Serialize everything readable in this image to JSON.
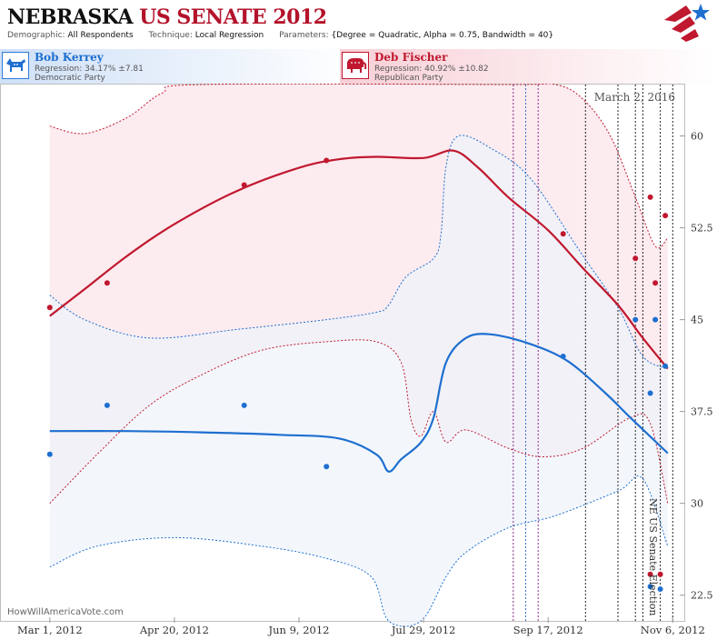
{
  "header": {
    "title_state": "NEBRASKA",
    "title_rest": "US SENATE 2012",
    "demographic_label": "Demographic:",
    "demographic_value": "All Respondents",
    "technique_label": "Technique:",
    "technique_value": "Local Regression",
    "parameters_label": "Parameters:",
    "parameters_value": "{Degree = Quadratic, Alpha = 0.75, Bandwidth = 40}"
  },
  "candidates": {
    "dem": {
      "name": "Bob Kerrey",
      "regression": "Regression: 34.17% ±7.81",
      "party": "Democratic Party",
      "icon": "donkey-icon",
      "color": "#1e6fd0"
    },
    "rep": {
      "name": "Deb Fischer",
      "regression": "Regression: 40.92% ±10.82",
      "party": "Republican Party",
      "icon": "elephant-icon",
      "color": "#c0182e"
    }
  },
  "watermark": "HowWillAmericaVote.com",
  "chart_data": {
    "type": "line",
    "date_annotation": "March 2, 2016",
    "election_label": "NE US Senate Election",
    "x_tick_labels": [
      "Mar 1, 2012",
      "Apr 20, 2012",
      "Jun 9, 2012",
      "Jul 29, 2012",
      "Sep 17, 2012",
      "Nov 6, 2012"
    ],
    "x_ticks": [
      "2012-03-01",
      "2012-04-20",
      "2012-06-09",
      "2012-07-29",
      "2012-09-17",
      "2012-11-06"
    ],
    "xlim": [
      "2012-02-10",
      "2012-11-11"
    ],
    "ylim": [
      20.4,
      64.2
    ],
    "y_ticks": [
      22.5,
      30,
      37.5,
      45,
      52.5,
      60
    ],
    "y_tick_labels": [
      "22.5",
      "30",
      "37.5",
      "45",
      "52.5",
      "60"
    ],
    "grid": false,
    "vertical_markers": [
      {
        "date": "2012-09-03",
        "color": "#8a2a8a"
      },
      {
        "date": "2012-09-08",
        "color": "#3a6fd0"
      },
      {
        "date": "2012-09-13",
        "color": "#8a2a8a"
      },
      {
        "date": "2012-10-02",
        "color": "#222222"
      },
      {
        "date": "2012-10-15",
        "color": "#222222"
      },
      {
        "date": "2012-10-22",
        "color": "#222222"
      },
      {
        "date": "2012-10-25",
        "color": "#222222"
      },
      {
        "date": "2012-11-01",
        "color": "#222222"
      },
      {
        "date": "2012-11-06",
        "color": "#222222"
      }
    ],
    "series": [
      {
        "name": "Deb Fischer",
        "color": "#c0182e",
        "band_fill": "#fbe8ec",
        "points": [
          [
            "2012-03-01",
            46.0
          ],
          [
            "2012-03-24",
            48.0
          ],
          [
            "2012-05-18",
            56.0
          ],
          [
            "2012-06-20",
            58.0
          ],
          [
            "2012-09-23",
            52.0
          ],
          [
            "2012-10-22",
            50.0
          ],
          [
            "2012-10-28",
            55.0
          ],
          [
            "2012-10-30",
            48.0
          ],
          [
            "2012-11-03",
            53.5
          ],
          [
            "2012-10-28",
            24.2
          ],
          [
            "2012-11-01",
            24.2
          ]
        ],
        "trend": [
          [
            "2012-03-01",
            45.3
          ],
          [
            "2012-03-15",
            47.5
          ],
          [
            "2012-04-01",
            50.2
          ],
          [
            "2012-04-20",
            52.8
          ],
          [
            "2012-05-15",
            55.5
          ],
          [
            "2012-06-09",
            57.4
          ],
          [
            "2012-06-25",
            58.1
          ],
          [
            "2012-07-10",
            58.3
          ],
          [
            "2012-07-29",
            58.2
          ],
          [
            "2012-08-10",
            58.8
          ],
          [
            "2012-08-20",
            57.4
          ],
          [
            "2012-09-01",
            55.0
          ],
          [
            "2012-09-17",
            52.3
          ],
          [
            "2012-10-01",
            49.2
          ],
          [
            "2012-10-15",
            46.2
          ],
          [
            "2012-10-25",
            43.5
          ],
          [
            "2012-11-04",
            41.0
          ]
        ],
        "upper": [
          [
            "2012-03-01",
            60.8
          ],
          [
            "2012-03-15",
            60.2
          ],
          [
            "2012-04-01",
            61.5
          ],
          [
            "2012-04-15",
            63.5
          ],
          [
            "2012-05-01",
            64.2
          ],
          [
            "2012-09-01",
            64.2
          ],
          [
            "2012-09-20",
            64.2
          ],
          [
            "2012-10-01",
            63.0
          ],
          [
            "2012-10-12",
            60.0
          ],
          [
            "2012-10-22",
            55.0
          ],
          [
            "2012-10-30",
            51.0
          ],
          [
            "2012-11-04",
            51.7
          ]
        ],
        "lower": [
          [
            "2012-03-01",
            30.0
          ],
          [
            "2012-03-20",
            34.0
          ],
          [
            "2012-04-10",
            38.0
          ],
          [
            "2012-05-01",
            40.5
          ],
          [
            "2012-05-25",
            42.5
          ],
          [
            "2012-06-20",
            43.2
          ],
          [
            "2012-07-10",
            43.2
          ],
          [
            "2012-07-20",
            41.5
          ],
          [
            "2012-07-24",
            36.8
          ],
          [
            "2012-07-28",
            35.5
          ],
          [
            "2012-08-02",
            37.5
          ],
          [
            "2012-08-07",
            35.0
          ],
          [
            "2012-08-15",
            36.0
          ],
          [
            "2012-09-01",
            34.5
          ],
          [
            "2012-09-15",
            33.8
          ],
          [
            "2012-10-01",
            34.5
          ],
          [
            "2012-10-20",
            37.0
          ],
          [
            "2012-10-28",
            36.5
          ],
          [
            "2012-11-04",
            30.0
          ]
        ]
      },
      {
        "name": "Bob Kerrey",
        "color": "#1e6fd0",
        "band_fill": "#eef3fb",
        "points": [
          [
            "2012-03-01",
            34.0
          ],
          [
            "2012-03-24",
            38.0
          ],
          [
            "2012-05-18",
            38.0
          ],
          [
            "2012-06-20",
            33.0
          ],
          [
            "2012-09-23",
            42.0
          ],
          [
            "2012-10-22",
            45.0
          ],
          [
            "2012-10-28",
            39.0
          ],
          [
            "2012-10-30",
            45.0
          ],
          [
            "2012-11-03",
            41.2
          ],
          [
            "2012-10-28",
            23.2
          ],
          [
            "2012-11-01",
            23.0
          ]
        ],
        "trend": [
          [
            "2012-03-01",
            35.9
          ],
          [
            "2012-04-01",
            35.9
          ],
          [
            "2012-05-01",
            35.8
          ],
          [
            "2012-06-01",
            35.6
          ],
          [
            "2012-06-25",
            35.3
          ],
          [
            "2012-07-10",
            34.0
          ],
          [
            "2012-07-15",
            32.6
          ],
          [
            "2012-07-20",
            33.6
          ],
          [
            "2012-07-28",
            35.0
          ],
          [
            "2012-08-02",
            37.0
          ],
          [
            "2012-08-07",
            41.5
          ],
          [
            "2012-08-15",
            43.5
          ],
          [
            "2012-08-25",
            43.8
          ],
          [
            "2012-09-10",
            43.0
          ],
          [
            "2012-09-25",
            41.6
          ],
          [
            "2012-10-10",
            39.0
          ],
          [
            "2012-10-20",
            37.0
          ],
          [
            "2012-11-04",
            34.1
          ]
        ],
        "upper": [
          [
            "2012-03-01",
            47.0
          ],
          [
            "2012-03-15",
            45.0
          ],
          [
            "2012-04-10",
            43.5
          ],
          [
            "2012-05-15",
            44.2
          ],
          [
            "2012-06-20",
            45.0
          ],
          [
            "2012-07-10",
            45.6
          ],
          [
            "2012-07-15",
            46.2
          ],
          [
            "2012-07-22",
            48.5
          ],
          [
            "2012-08-02",
            50.0
          ],
          [
            "2012-08-05",
            52.0
          ],
          [
            "2012-08-07",
            57.5
          ],
          [
            "2012-08-12",
            60.0
          ],
          [
            "2012-08-25",
            59.0
          ],
          [
            "2012-09-10",
            56.5
          ],
          [
            "2012-09-30",
            50.5
          ],
          [
            "2012-10-15",
            46.0
          ],
          [
            "2012-10-25",
            42.0
          ],
          [
            "2012-11-04",
            41.0
          ]
        ],
        "lower": [
          [
            "2012-03-01",
            24.8
          ],
          [
            "2012-03-20",
            26.5
          ],
          [
            "2012-04-20",
            27.2
          ],
          [
            "2012-05-25",
            26.5
          ],
          [
            "2012-06-20",
            25.5
          ],
          [
            "2012-07-08",
            24.0
          ],
          [
            "2012-07-15",
            20.4
          ],
          [
            "2012-07-28",
            20.4
          ],
          [
            "2012-08-07",
            24.0
          ],
          [
            "2012-08-15",
            26.0
          ],
          [
            "2012-09-01",
            28.0
          ],
          [
            "2012-09-20",
            29.0
          ],
          [
            "2012-10-15",
            31.0
          ],
          [
            "2012-10-25",
            32.0
          ],
          [
            "2012-11-04",
            26.5
          ]
        ]
      }
    ]
  }
}
